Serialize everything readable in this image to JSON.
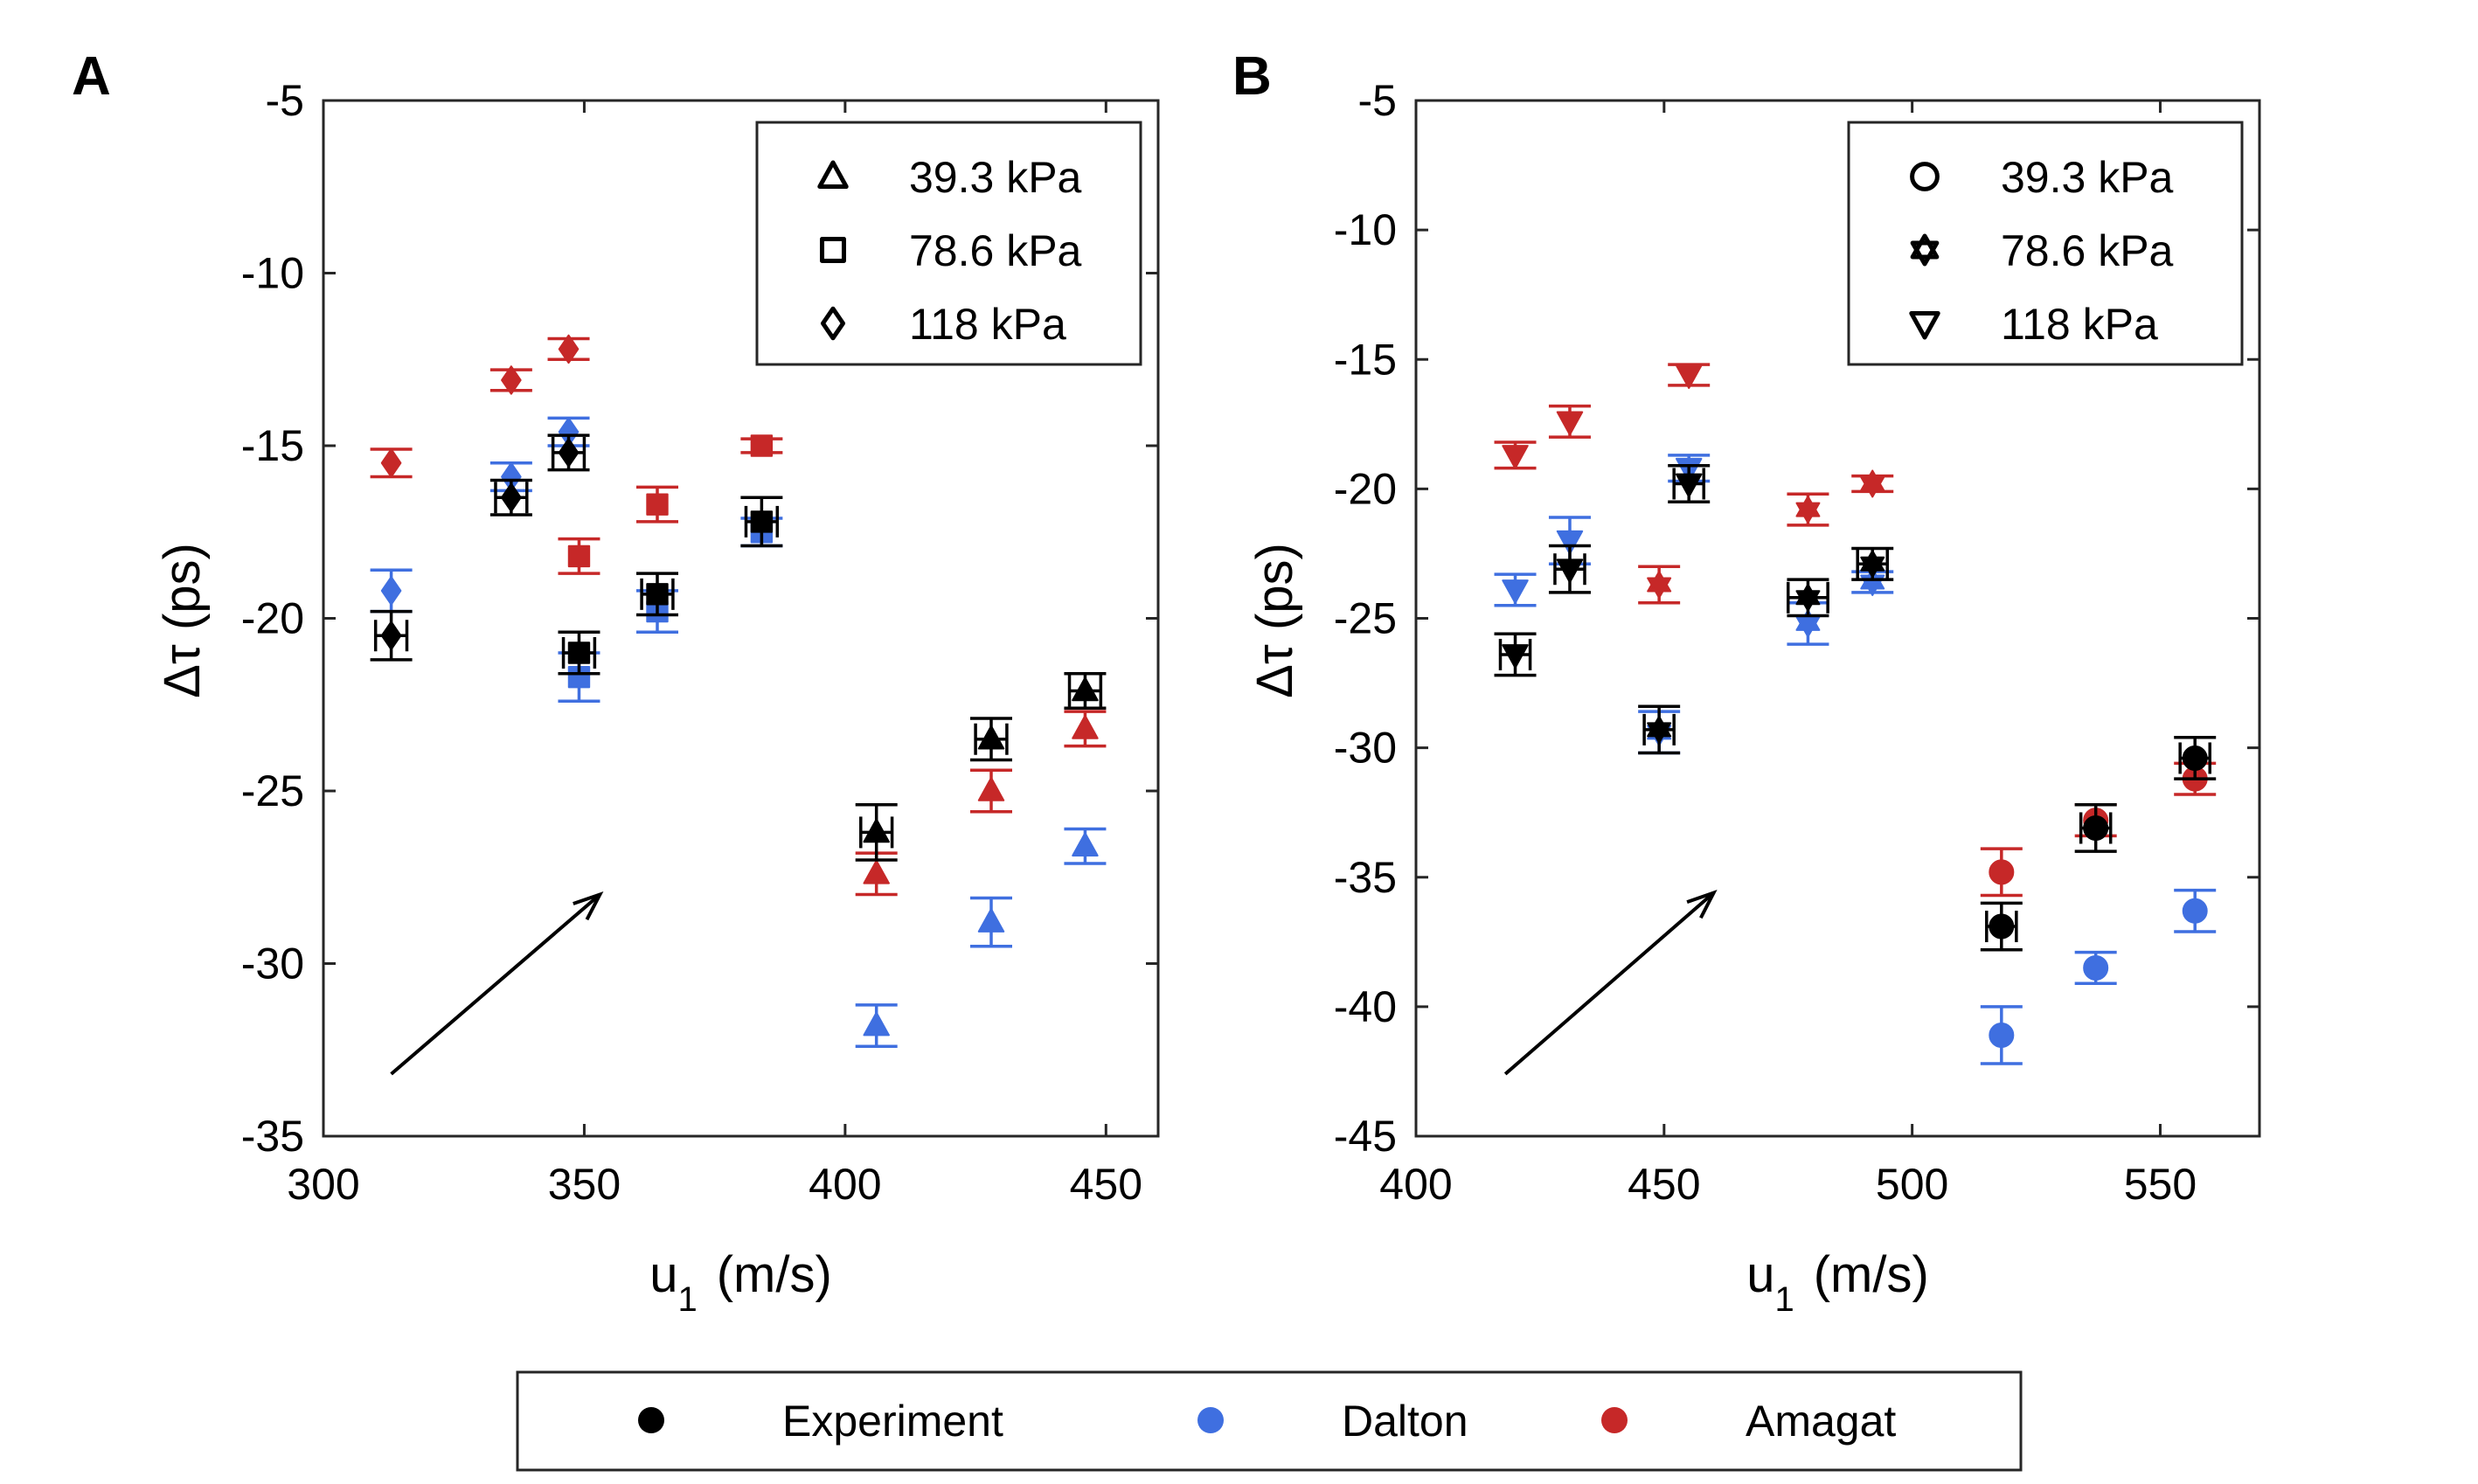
{
  "figure": {
    "marker_colors": {
      "experiment": "#000000",
      "dalton": "#3f6fe0",
      "amagat": "#c62828"
    },
    "bottom_legend": [
      {
        "label": "Experiment",
        "color": "#000000"
      },
      {
        "label": "Dalton",
        "color": "#3f6fe0"
      },
      {
        "label": "Amagat",
        "color": "#c62828"
      }
    ]
  },
  "chart_data": [
    {
      "panel": "A",
      "type": "scatter",
      "xlabel_main": "u",
      "xlabel_sub": "1",
      "xlabel_unit": "(m/s)",
      "ylabel": "Δτ (ps)",
      "xlim": [
        300,
        460
      ],
      "ylim": [
        -35,
        -5
      ],
      "xticks": [
        300,
        350,
        400,
        450
      ],
      "yticks": [
        -35,
        -30,
        -25,
        -20,
        -15,
        -10,
        -5
      ],
      "legend_position": "top-right",
      "legend": [
        {
          "marker": "triangle",
          "label": "39.3 kPa"
        },
        {
          "marker": "square",
          "label": "78.6 kPa"
        },
        {
          "marker": "diamond",
          "label": "118 kPa"
        }
      ],
      "arrow": {
        "from": [
          313,
          -33.2
        ],
        "to": [
          353,
          -28.0
        ]
      },
      "series": [
        {
          "name": "Experiment",
          "color": "experiment",
          "points": [
            {
              "x": 313,
              "y": -20.5,
              "err": 0.7,
              "xerr": 3,
              "marker": "diamond"
            },
            {
              "x": 336,
              "y": -16.5,
              "err": 0.5,
              "xerr": 3,
              "marker": "diamond"
            },
            {
              "x": 347,
              "y": -15.2,
              "err": 0.5,
              "xerr": 3,
              "marker": "diamond"
            },
            {
              "x": 349,
              "y": -21.0,
              "err": 0.6,
              "xerr": 3,
              "marker": "square"
            },
            {
              "x": 364,
              "y": -19.3,
              "err": 0.6,
              "xerr": 3,
              "marker": "square"
            },
            {
              "x": 384,
              "y": -17.2,
              "err": 0.7,
              "xerr": 3,
              "marker": "square"
            },
            {
              "x": 406,
              "y": -26.2,
              "err": 0.8,
              "xerr": 3,
              "marker": "triangle"
            },
            {
              "x": 428,
              "y": -23.5,
              "err": 0.6,
              "xerr": 3,
              "marker": "triangle"
            },
            {
              "x": 446,
              "y": -22.1,
              "err": 0.5,
              "xerr": 3,
              "marker": "triangle"
            }
          ]
        },
        {
          "name": "Dalton",
          "color": "dalton",
          "points": [
            {
              "x": 313,
              "y": -19.2,
              "err": 0.6,
              "marker": "diamond"
            },
            {
              "x": 336,
              "y": -15.9,
              "err": 0.4,
              "marker": "diamond"
            },
            {
              "x": 347,
              "y": -14.6,
              "err": 0.4,
              "marker": "diamond"
            },
            {
              "x": 349,
              "y": -21.7,
              "err": 0.7,
              "marker": "square"
            },
            {
              "x": 364,
              "y": -19.8,
              "err": 0.6,
              "marker": "square"
            },
            {
              "x": 384,
              "y": -17.5,
              "err": 0.4,
              "marker": "square"
            },
            {
              "x": 406,
              "y": -31.8,
              "err": 0.6,
              "marker": "triangle"
            },
            {
              "x": 428,
              "y": -28.8,
              "err": 0.7,
              "marker": "triangle"
            },
            {
              "x": 446,
              "y": -26.6,
              "err": 0.5,
              "marker": "triangle"
            }
          ]
        },
        {
          "name": "Amagat",
          "color": "amagat",
          "points": [
            {
              "x": 313,
              "y": -15.5,
              "err": 0.4,
              "marker": "diamond"
            },
            {
              "x": 336,
              "y": -13.1,
              "err": 0.3,
              "marker": "diamond"
            },
            {
              "x": 347,
              "y": -12.2,
              "err": 0.3,
              "marker": "diamond"
            },
            {
              "x": 349,
              "y": -18.2,
              "err": 0.5,
              "marker": "square"
            },
            {
              "x": 364,
              "y": -16.7,
              "err": 0.5,
              "marker": "square"
            },
            {
              "x": 384,
              "y": -15.0,
              "err": 0.2,
              "marker": "square"
            },
            {
              "x": 406,
              "y": -27.4,
              "err": 0.6,
              "marker": "triangle"
            },
            {
              "x": 428,
              "y": -25.0,
              "err": 0.6,
              "marker": "triangle"
            },
            {
              "x": 446,
              "y": -23.2,
              "err": 0.5,
              "marker": "triangle"
            }
          ]
        }
      ]
    },
    {
      "panel": "B",
      "type": "scatter",
      "xlabel_main": "u",
      "xlabel_sub": "1",
      "xlabel_unit": "(m/s)",
      "ylabel": "Δτ (ps)",
      "xlim": [
        400,
        570
      ],
      "ylim": [
        -45,
        -5
      ],
      "xticks": [
        400,
        450,
        500,
        550
      ],
      "yticks": [
        -45,
        -40,
        -35,
        -30,
        -25,
        -20,
        -15,
        -10,
        -5
      ],
      "legend_position": "top-right",
      "legend": [
        {
          "marker": "circle",
          "label": "39.3 kPa"
        },
        {
          "marker": "hexagram",
          "label": "78.6 kPa"
        },
        {
          "marker": "triangle-down",
          "label": "118 kPa"
        }
      ],
      "arrow": {
        "from": [
          418,
          -42.6
        ],
        "to": [
          460,
          -35.6
        ]
      },
      "series": [
        {
          "name": "Experiment",
          "color": "experiment",
          "points": [
            {
              "x": 420,
              "y": -26.4,
              "err": 0.8,
              "xerr": 3,
              "marker": "triangle-down"
            },
            {
              "x": 431,
              "y": -23.1,
              "err": 0.9,
              "xerr": 3,
              "marker": "triangle-down"
            },
            {
              "x": 455,
              "y": -19.8,
              "err": 0.7,
              "xerr": 3,
              "marker": "triangle-down"
            },
            {
              "x": 449,
              "y": -29.3,
              "err": 0.9,
              "xerr": 3,
              "marker": "hexagram"
            },
            {
              "x": 479,
              "y": -24.2,
              "err": 0.7,
              "xerr": 4,
              "marker": "hexagram"
            },
            {
              "x": 492,
              "y": -22.9,
              "err": 0.6,
              "xerr": 3,
              "marker": "hexagram"
            },
            {
              "x": 518,
              "y": -36.9,
              "err": 0.9,
              "xerr": 3,
              "marker": "circle"
            },
            {
              "x": 537,
              "y": -33.1,
              "err": 0.9,
              "xerr": 3,
              "marker": "circle"
            },
            {
              "x": 557,
              "y": -30.4,
              "err": 0.8,
              "xerr": 3,
              "marker": "circle"
            }
          ]
        },
        {
          "name": "Dalton",
          "color": "dalton",
          "points": [
            {
              "x": 420,
              "y": -23.9,
              "err": 0.6,
              "marker": "triangle-down"
            },
            {
              "x": 431,
              "y": -22.0,
              "err": 0.9,
              "marker": "triangle-down"
            },
            {
              "x": 455,
              "y": -19.2,
              "err": 0.5,
              "marker": "triangle-down"
            },
            {
              "x": 449,
              "y": -29.4,
              "err": 0.8,
              "marker": "hexagram"
            },
            {
              "x": 479,
              "y": -25.2,
              "err": 0.8,
              "marker": "hexagram"
            },
            {
              "x": 492,
              "y": -23.6,
              "err": 0.4,
              "marker": "hexagram"
            },
            {
              "x": 518,
              "y": -41.1,
              "err": 1.1,
              "marker": "circle"
            },
            {
              "x": 537,
              "y": -38.5,
              "err": 0.6,
              "marker": "circle"
            },
            {
              "x": 557,
              "y": -36.3,
              "err": 0.8,
              "marker": "circle"
            }
          ]
        },
        {
          "name": "Amagat",
          "color": "amagat",
          "points": [
            {
              "x": 420,
              "y": -18.7,
              "err": 0.5,
              "marker": "triangle-down"
            },
            {
              "x": 431,
              "y": -17.4,
              "err": 0.6,
              "marker": "triangle-down"
            },
            {
              "x": 455,
              "y": -15.6,
              "err": 0.4,
              "marker": "triangle-down"
            },
            {
              "x": 449,
              "y": -23.7,
              "err": 0.7,
              "marker": "hexagram"
            },
            {
              "x": 479,
              "y": -20.8,
              "err": 0.6,
              "marker": "hexagram"
            },
            {
              "x": 492,
              "y": -19.8,
              "err": 0.3,
              "marker": "hexagram"
            },
            {
              "x": 518,
              "y": -34.8,
              "err": 0.9,
              "marker": "circle"
            },
            {
              "x": 537,
              "y": -32.8,
              "err": 0.6,
              "marker": "circle"
            },
            {
              "x": 557,
              "y": -31.2,
              "err": 0.6,
              "marker": "circle"
            }
          ]
        }
      ]
    }
  ]
}
